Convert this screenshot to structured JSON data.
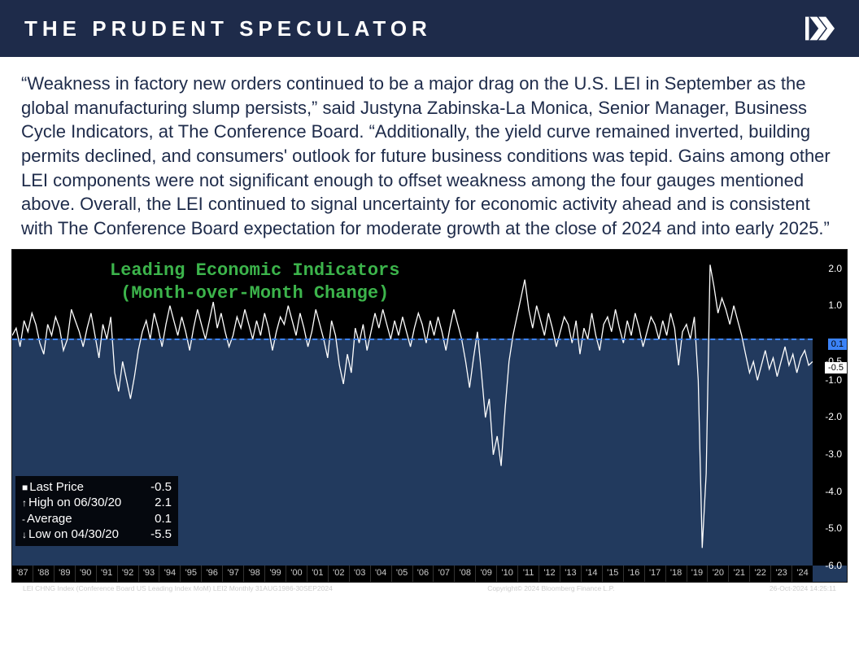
{
  "header": {
    "title": "THE PRUDENT SPECULATOR",
    "logo_color": "#ffffff",
    "background": "#1e2b4a"
  },
  "body_text": "“Weakness in factory new orders continued to be a major drag on the U.S. LEI in September as the global manufacturing slump persists,” said Justyna Zabinska-La Monica, Senior Manager, Business Cycle Indicators, at The Conference Board. “Additionally, the yield curve remained inverted, building permits declined, and consumers' outlook for future business conditions was tepid. Gains among other LEI components were not significant enough to offset weakness among the four gauges mentioned above. Overall, the LEI continued to signal uncertainty for economic activity ahead and is consistent with The Conference Board expectation for moderate growth at the close of 2024 and into early 2025.”",
  "chart": {
    "type": "line",
    "title_line1": "Leading Economic Indicators",
    "title_line2": "(Month-over-Month Change)",
    "title_color": "#3cb44b",
    "plot_bg_upper": "#000000",
    "plot_bg_lower": "#223a5e",
    "line_color": "#ffffff",
    "mean_line_color": "#3b82f6",
    "mean_value": 0.1,
    "last_value": -0.5,
    "ylim": [
      -6.0,
      2.5
    ],
    "yticks": [
      2.0,
      1.0,
      -0.5,
      -1.0,
      -2.0,
      -3.0,
      -4.0,
      -5.0,
      -6.0
    ],
    "ytick_labels": [
      "2.0",
      "1.0",
      "-0.5",
      "-1.0",
      "-2.0",
      "-3.0",
      "-4.0",
      "-5.0",
      "-6.0"
    ],
    "xticks": [
      "'87",
      "'88",
      "'89",
      "'90",
      "'91",
      "'92",
      "'93",
      "'94",
      "'95",
      "'96",
      "'97",
      "'98",
      "'99",
      "'00",
      "'01",
      "'02",
      "'03",
      "'04",
      "'05",
      "'06",
      "'07",
      "'08",
      "'09",
      "'10",
      "'11",
      "'12",
      "'13",
      "'14",
      "'15",
      "'16",
      "'17",
      "'18",
      "'19",
      "'20",
      "'21",
      "'22",
      "'23",
      "'24"
    ],
    "series": [
      0.2,
      0.4,
      -0.1,
      0.6,
      0.3,
      0.8,
      0.5,
      0.0,
      -0.3,
      0.5,
      0.2,
      0.7,
      0.4,
      -0.2,
      0.1,
      0.9,
      0.6,
      0.3,
      -0.1,
      0.4,
      0.8,
      0.2,
      -0.4,
      0.5,
      0.1,
      0.7,
      -0.8,
      -1.3,
      -0.5,
      -1.0,
      -1.5,
      -0.9,
      -0.2,
      0.3,
      0.6,
      0.1,
      0.8,
      0.4,
      -0.1,
      0.5,
      1.0,
      0.6,
      0.2,
      0.7,
      0.3,
      -0.2,
      0.4,
      0.9,
      0.5,
      0.1,
      0.6,
      1.1,
      0.4,
      0.8,
      0.3,
      -0.1,
      0.2,
      0.7,
      0.4,
      0.9,
      0.5,
      0.1,
      0.6,
      0.2,
      0.8,
      0.4,
      -0.2,
      0.3,
      0.7,
      0.5,
      1.0,
      0.6,
      0.2,
      0.8,
      0.4,
      -0.1,
      0.3,
      0.9,
      0.5,
      0.1,
      -0.4,
      0.6,
      0.2,
      -0.6,
      -1.1,
      -0.3,
      -0.8,
      0.4,
      0.0,
      0.5,
      -0.2,
      0.3,
      0.8,
      0.4,
      0.9,
      0.5,
      0.1,
      0.6,
      0.2,
      0.7,
      0.3,
      -0.1,
      0.4,
      0.8,
      0.5,
      0.0,
      0.6,
      0.2,
      0.7,
      0.3,
      -0.2,
      0.4,
      0.9,
      0.5,
      0.1,
      -0.5,
      -1.2,
      -0.4,
      0.3,
      -0.8,
      -2.0,
      -1.5,
      -3.0,
      -2.5,
      -3.3,
      -1.8,
      -0.5,
      0.2,
      0.7,
      1.2,
      1.7,
      0.9,
      0.4,
      1.0,
      0.6,
      0.2,
      0.8,
      0.4,
      -0.1,
      0.3,
      0.7,
      0.5,
      0.0,
      0.6,
      -0.3,
      0.4,
      0.1,
      0.8,
      0.2,
      -0.2,
      0.5,
      0.7,
      0.3,
      0.9,
      0.4,
      0.0,
      0.6,
      0.2,
      0.8,
      0.4,
      -0.1,
      0.3,
      0.7,
      0.5,
      0.1,
      0.6,
      0.2,
      0.8,
      0.4,
      -0.6,
      0.3,
      0.5,
      0.1,
      0.7,
      -1.0,
      -5.5,
      -3.5,
      2.1,
      1.5,
      0.8,
      1.2,
      0.9,
      0.5,
      1.0,
      0.6,
      0.2,
      -0.3,
      -0.8,
      -0.5,
      -1.0,
      -0.6,
      -0.2,
      -0.7,
      -0.4,
      -0.9,
      -0.5,
      -0.1,
      -0.6,
      -0.3,
      -0.8,
      -0.4,
      -0.2,
      -0.6,
      -0.5
    ],
    "stats": {
      "rows": [
        {
          "marker": "■",
          "label": "Last Price",
          "value": "-0.5"
        },
        {
          "marker": "↑",
          "label": "High on 06/30/20",
          "value": "2.1"
        },
        {
          "marker": "-",
          "label": "Average",
          "value": "0.1"
        },
        {
          "marker": "↓",
          "label": "Low on 04/30/20",
          "value": "-5.5"
        }
      ]
    }
  },
  "footer": {
    "left": "LEI CHNG Index (Conference Board US Leading Index MoM) LEI2  Monthly 31AUG1986-30SEP2024",
    "center": "Copyright© 2024 Bloomberg Finance L.P.",
    "right": "26-Oct-2024 14:25:11"
  }
}
